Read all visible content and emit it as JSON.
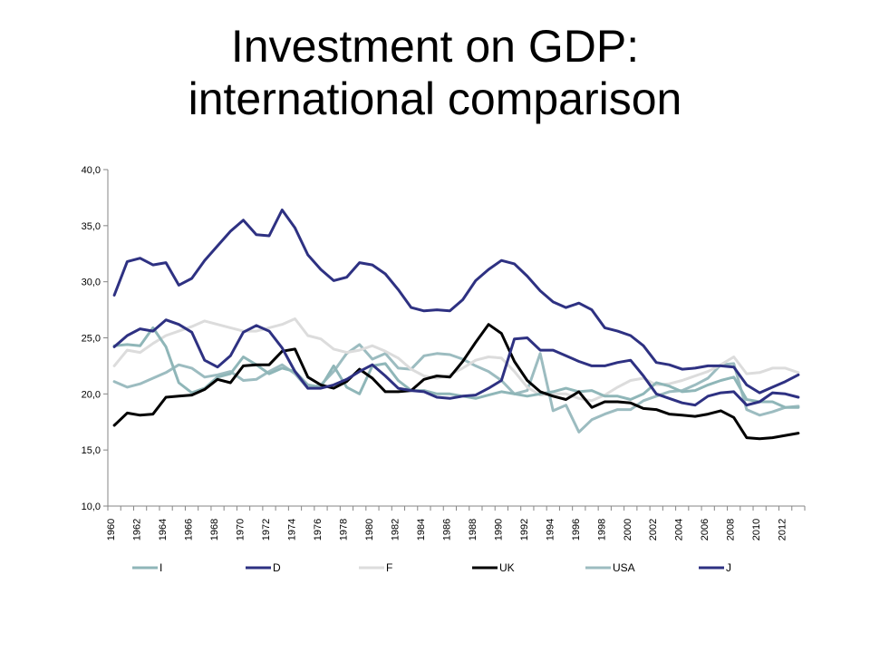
{
  "slide": {
    "title_line1": "Investment on GDP:",
    "title_line2": "international comparison"
  },
  "chart_data": {
    "type": "line",
    "x": [
      1960,
      1961,
      1962,
      1963,
      1964,
      1965,
      1966,
      1967,
      1968,
      1969,
      1970,
      1971,
      1972,
      1973,
      1974,
      1975,
      1976,
      1977,
      1978,
      1979,
      1980,
      1981,
      1982,
      1983,
      1984,
      1985,
      1986,
      1987,
      1988,
      1989,
      1990,
      1991,
      1992,
      1993,
      1994,
      1995,
      1996,
      1997,
      1998,
      1999,
      2000,
      2001,
      2002,
      2003,
      2004,
      2005,
      2006,
      2007,
      2008,
      2009,
      2010,
      2011,
      2012,
      2013
    ],
    "x_tick_labels": [
      "1960",
      "1962",
      "1964",
      "1966",
      "1968",
      "1970",
      "1972",
      "1974",
      "1976",
      "1978",
      "1980",
      "1982",
      "1984",
      "1986",
      "1988",
      "1990",
      "1992",
      "1994",
      "1996",
      "1998",
      "2000",
      "2002",
      "2004",
      "2006",
      "2008",
      "2010",
      "2012"
    ],
    "y_tick_labels": [
      "40,0",
      "35,0",
      "30,0",
      "25,0",
      "20,0",
      "15,0",
      "10,0"
    ],
    "ylim": [
      10,
      40
    ],
    "grid": false,
    "legend_position": "bottom",
    "series": [
      {
        "name": "I",
        "color": "#8fb6b8",
        "values": [
          24.3,
          24.4,
          24.3,
          25.9,
          24.2,
          21.0,
          20.1,
          20.5,
          21.5,
          21.8,
          23.3,
          22.6,
          21.8,
          22.3,
          22.0,
          20.8,
          20.6,
          22.5,
          20.6,
          20.0,
          22.5,
          22.7,
          21.2,
          20.3,
          20.3,
          20.0,
          20.0,
          19.8,
          19.6,
          19.9,
          20.2,
          20.0,
          19.8,
          20.0,
          20.2,
          20.5,
          20.2,
          20.3,
          19.8,
          19.8,
          19.5,
          20.0,
          21.0,
          20.7,
          20.2,
          20.3,
          20.8,
          21.2,
          21.5,
          19.5,
          19.3,
          19.3,
          18.8,
          18.8
        ]
      },
      {
        "name": "D",
        "color": "#2e3182",
        "values": [
          24.2,
          25.2,
          25.8,
          25.6,
          26.6,
          26.2,
          25.5,
          23.0,
          22.4,
          23.4,
          25.5,
          26.1,
          25.6,
          24.1,
          22.0,
          20.5,
          20.5,
          20.8,
          21.3,
          22.0,
          22.6,
          21.6,
          20.5,
          20.3,
          20.2,
          19.7,
          19.6,
          19.8,
          19.9,
          20.5,
          21.2,
          24.9,
          25.0,
          23.9,
          23.9,
          23.4,
          22.9,
          22.5,
          22.5,
          22.8,
          23.0,
          21.6,
          20.0,
          19.6,
          19.2,
          19.0,
          19.8,
          20.1,
          20.2,
          19.0,
          19.3,
          20.1,
          20.0,
          19.7
        ]
      },
      {
        "name": "F",
        "color": "#dcdcdc",
        "values": [
          22.5,
          23.9,
          23.7,
          24.5,
          25.2,
          25.6,
          26.0,
          26.5,
          26.2,
          25.9,
          25.6,
          25.6,
          25.9,
          26.2,
          26.7,
          25.2,
          24.9,
          24.0,
          23.7,
          23.9,
          24.3,
          23.8,
          23.2,
          22.2,
          21.6,
          21.4,
          21.7,
          22.3,
          23.0,
          23.3,
          23.2,
          22.0,
          20.6,
          19.9,
          20.0,
          20.0,
          19.6,
          19.4,
          19.9,
          20.6,
          21.2,
          21.4,
          20.8,
          20.9,
          21.2,
          21.6,
          22.0,
          22.6,
          23.3,
          21.8,
          21.9,
          22.3,
          22.3,
          21.9
        ]
      },
      {
        "name": "UK",
        "color": "#000000",
        "values": [
          17.2,
          18.3,
          18.1,
          18.2,
          19.7,
          19.8,
          19.9,
          20.4,
          21.3,
          21.0,
          22.5,
          22.6,
          22.6,
          23.8,
          24.0,
          21.5,
          20.8,
          20.5,
          21.1,
          22.2,
          21.4,
          20.2,
          20.2,
          20.3,
          21.3,
          21.6,
          21.5,
          22.9,
          24.6,
          26.2,
          25.4,
          22.9,
          21.2,
          20.2,
          19.8,
          19.5,
          20.2,
          18.8,
          19.3,
          19.3,
          19.2,
          18.7,
          18.6,
          18.2,
          18.1,
          18.0,
          18.2,
          18.5,
          17.9,
          16.1,
          16.0,
          16.1,
          16.3,
          16.5
        ]
      },
      {
        "name": "USA",
        "color": "#9cbcc0",
        "values": [
          21.1,
          20.6,
          20.9,
          21.4,
          21.9,
          22.6,
          22.3,
          21.5,
          21.7,
          22.0,
          21.2,
          21.3,
          22.0,
          22.6,
          21.8,
          20.5,
          20.8,
          22.0,
          23.6,
          24.4,
          23.1,
          23.6,
          22.3,
          22.2,
          23.4,
          23.6,
          23.5,
          23.1,
          22.5,
          22.0,
          21.2,
          20.0,
          20.3,
          23.6,
          18.5,
          19.0,
          16.6,
          17.7,
          18.2,
          18.6,
          18.6,
          19.4,
          19.8,
          20.2,
          20.3,
          20.8,
          21.4,
          22.6,
          22.7,
          18.6,
          18.1,
          18.4,
          18.8,
          18.9
        ]
      },
      {
        "name": "J",
        "color": "#2e3182",
        "values": [
          28.8,
          31.8,
          32.1,
          31.5,
          31.7,
          29.7,
          30.3,
          31.9,
          33.2,
          34.5,
          35.5,
          34.2,
          34.1,
          36.4,
          34.8,
          32.4,
          31.1,
          30.1,
          30.4,
          31.7,
          31.5,
          30.7,
          29.3,
          27.7,
          27.4,
          27.5,
          27.4,
          28.4,
          30.1,
          31.1,
          31.9,
          31.6,
          30.5,
          29.2,
          28.2,
          27.7,
          28.1,
          27.5,
          25.9,
          25.6,
          25.2,
          24.3,
          22.8,
          22.6,
          22.2,
          22.3,
          22.5,
          22.5,
          22.4,
          20.8,
          20.1,
          20.6,
          21.1,
          21.7
        ]
      }
    ]
  }
}
